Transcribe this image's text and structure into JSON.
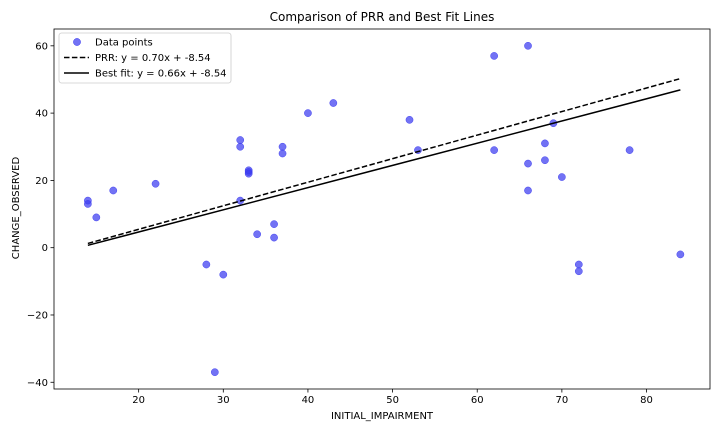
{
  "chart_data": {
    "type": "scatter",
    "title": "Comparison of PRR and Best Fit Lines",
    "xlabel": "INITIAL_IMPAIRMENT",
    "ylabel": "CHANGE_OBSERVED",
    "xlim": [
      10,
      87.5
    ],
    "ylim": [
      -42,
      65
    ],
    "xticks": [
      20,
      30,
      40,
      50,
      60,
      70,
      80
    ],
    "yticks": [
      -40,
      -20,
      0,
      20,
      40,
      60
    ],
    "grid": false,
    "legend_position": "upper-left",
    "series": [
      {
        "name": "Data points",
        "kind": "scatter",
        "color": "#3b3bf0",
        "points": [
          [
            14,
            14
          ],
          [
            14,
            13
          ],
          [
            15,
            9
          ],
          [
            17,
            17
          ],
          [
            22,
            19
          ],
          [
            28,
            -5
          ],
          [
            29,
            -37
          ],
          [
            30,
            -8
          ],
          [
            32,
            32
          ],
          [
            32,
            30
          ],
          [
            32,
            14
          ],
          [
            33,
            23
          ],
          [
            33,
            22.5
          ],
          [
            33,
            22
          ],
          [
            34,
            4
          ],
          [
            36,
            7
          ],
          [
            36,
            3
          ],
          [
            37,
            30
          ],
          [
            37,
            28
          ],
          [
            40,
            40
          ],
          [
            43,
            43
          ],
          [
            52,
            38
          ],
          [
            53,
            29
          ],
          [
            62,
            57
          ],
          [
            62,
            29
          ],
          [
            66,
            60
          ],
          [
            66,
            25
          ],
          [
            66,
            17
          ],
          [
            68,
            31
          ],
          [
            68,
            26
          ],
          [
            69,
            37
          ],
          [
            70,
            21
          ],
          [
            72,
            -5
          ],
          [
            72,
            -7
          ],
          [
            78,
            29
          ],
          [
            84,
            -2
          ]
        ]
      },
      {
        "name": "PRR: y = 0.70x + -8.54",
        "kind": "line",
        "style": "dashed",
        "color": "#000000",
        "slope": 0.7,
        "intercept": -8.54,
        "x_range": [
          14,
          84
        ]
      },
      {
        "name": "Best fit: y = 0.66x + -8.54",
        "kind": "line",
        "style": "solid",
        "color": "#000000",
        "slope": 0.66,
        "intercept": -8.54,
        "x_range": [
          14,
          84
        ]
      }
    ]
  }
}
